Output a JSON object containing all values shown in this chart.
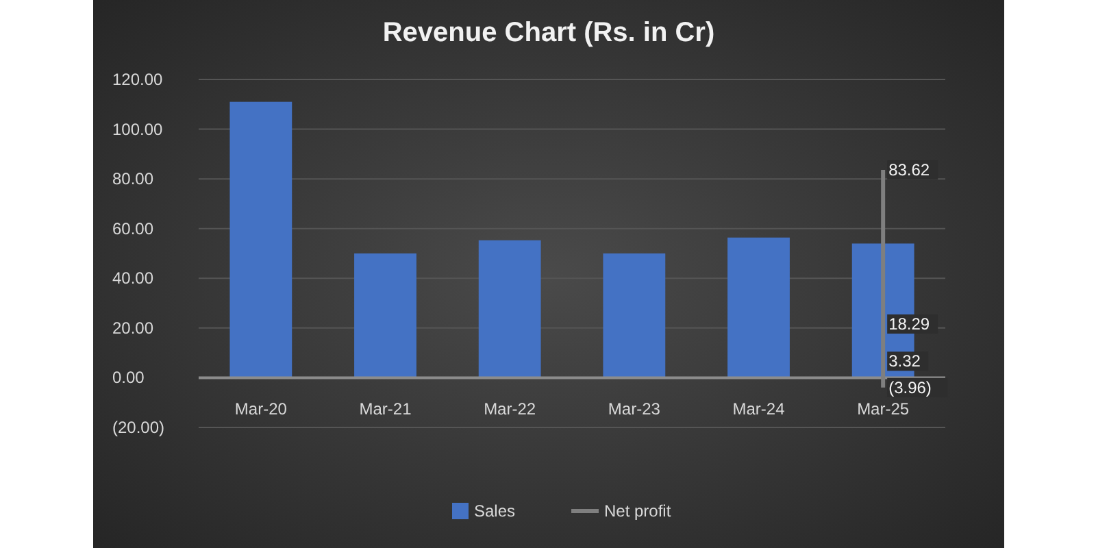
{
  "chart_data": {
    "type": "bar",
    "title": "Revenue Chart (Rs. in Cr)",
    "categories": [
      "Mar-20",
      "Mar-21",
      "Mar-22",
      "Mar-23",
      "Mar-24",
      "Mar-25"
    ],
    "series": [
      {
        "name": "Sales",
        "color": "#4472c4",
        "values": [
          111,
          50,
          55.3,
          50,
          56.4,
          54
        ]
      },
      {
        "name": "Net profit",
        "type": "line",
        "color": "#7f7f7f",
        "x": [
          "Mar-25",
          "Mar-25",
          "Mar-25",
          "Mar-25"
        ],
        "values": [
          83.62,
          18.29,
          3.32,
          -3.96
        ],
        "value_labels": [
          "83.62",
          "18.29",
          "3.32",
          "(3.96)"
        ]
      }
    ],
    "ylim": [
      -20,
      120
    ],
    "yticks": [
      {
        "value": -20,
        "label": "(20.00)"
      },
      {
        "value": 0,
        "label": "0.00"
      },
      {
        "value": 20,
        "label": "20.00"
      },
      {
        "value": 40,
        "label": "40.00"
      },
      {
        "value": 60,
        "label": "60.00"
      },
      {
        "value": 80,
        "label": "80.00"
      },
      {
        "value": 100,
        "label": "100.00"
      },
      {
        "value": 120,
        "label": "120.00"
      }
    ],
    "grid": "y",
    "legend": "bottom",
    "marker": "none"
  }
}
